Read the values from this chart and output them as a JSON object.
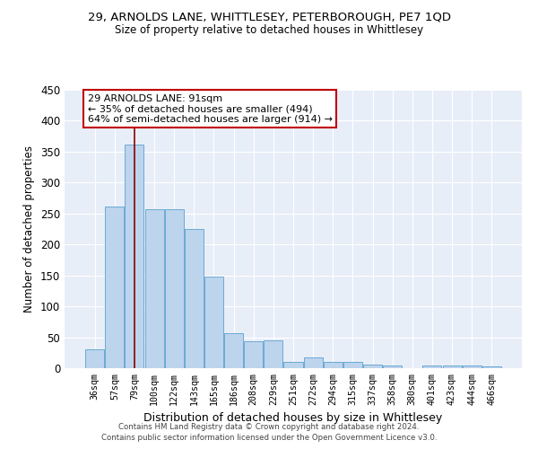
{
  "title": "29, ARNOLDS LANE, WHITTLESEY, PETERBOROUGH, PE7 1QD",
  "subtitle": "Size of property relative to detached houses in Whittlesey",
  "xlabel": "Distribution of detached houses by size in Whittlesey",
  "ylabel": "Number of detached properties",
  "categories": [
    "36sqm",
    "57sqm",
    "79sqm",
    "100sqm",
    "122sqm",
    "143sqm",
    "165sqm",
    "186sqm",
    "208sqm",
    "229sqm",
    "251sqm",
    "272sqm",
    "294sqm",
    "315sqm",
    "337sqm",
    "358sqm",
    "380sqm",
    "401sqm",
    "423sqm",
    "444sqm",
    "466sqm"
  ],
  "values": [
    31,
    261,
    361,
    257,
    257,
    225,
    148,
    57,
    43,
    45,
    10,
    18,
    10,
    10,
    6,
    5,
    0,
    4,
    4,
    4,
    3
  ],
  "bar_color": "#bdd4ed",
  "bar_edge_color": "#6aaad4",
  "vline_color": "#8b0000",
  "annotation_text": "29 ARNOLDS LANE: 91sqm\n← 35% of detached houses are smaller (494)\n64% of semi-detached houses are larger (914) →",
  "annotation_box_color": "white",
  "annotation_box_edge": "#c00000",
  "ylim": [
    0,
    450
  ],
  "yticks": [
    0,
    50,
    100,
    150,
    200,
    250,
    300,
    350,
    400,
    450
  ],
  "bg_color": "#e8eef8",
  "grid_color": "#ffffff",
  "footer1": "Contains HM Land Registry data © Crown copyright and database right 2024.",
  "footer2": "Contains public sector information licensed under the Open Government Licence v3.0."
}
